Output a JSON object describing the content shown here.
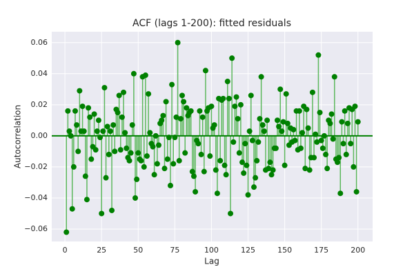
{
  "chart_data": {
    "type": "stem",
    "title": "ACF (lags 1-200): fitted residuals",
    "xlabel": "Lag",
    "ylabel": "Autocorrelation",
    "x": [
      1,
      2,
      3,
      4,
      5,
      6,
      7,
      8,
      9,
      10,
      11,
      12,
      13,
      14,
      15,
      16,
      17,
      18,
      19,
      20,
      21,
      22,
      23,
      24,
      25,
      26,
      27,
      28,
      29,
      30,
      31,
      32,
      33,
      34,
      35,
      36,
      37,
      38,
      39,
      40,
      41,
      42,
      43,
      44,
      45,
      46,
      47,
      48,
      49,
      50,
      51,
      52,
      53,
      54,
      55,
      56,
      57,
      58,
      59,
      60,
      61,
      62,
      63,
      64,
      65,
      66,
      67,
      68,
      69,
      70,
      71,
      72,
      73,
      74,
      75,
      76,
      77,
      78,
      79,
      80,
      81,
      82,
      83,
      84,
      85,
      86,
      87,
      88,
      89,
      90,
      91,
      92,
      93,
      94,
      95,
      96,
      97,
      98,
      99,
      100,
      101,
      102,
      103,
      104,
      105,
      106,
      107,
      108,
      109,
      110,
      111,
      112,
      113,
      114,
      115,
      116,
      117,
      118,
      119,
      120,
      121,
      122,
      123,
      124,
      125,
      126,
      127,
      128,
      129,
      130,
      131,
      132,
      133,
      134,
      135,
      136,
      137,
      138,
      139,
      140,
      141,
      142,
      143,
      144,
      145,
      146,
      147,
      148,
      149,
      150,
      151,
      152,
      153,
      154,
      155,
      156,
      157,
      158,
      159,
      160,
      161,
      162,
      163,
      164,
      165,
      166,
      167,
      168,
      169,
      170,
      171,
      172,
      173,
      174,
      175,
      176,
      177,
      178,
      179,
      180,
      181,
      182,
      183,
      184,
      185,
      186,
      187,
      188,
      189,
      190,
      191,
      192,
      193,
      194,
      195,
      196,
      197,
      198,
      199,
      200
    ],
    "values": [
      -0.062,
      0.016,
      0.003,
      0.0,
      -0.047,
      -0.02,
      0.016,
      0.007,
      -0.01,
      0.029,
      0.003,
      0.019,
      0.003,
      -0.026,
      -0.041,
      0.018,
      0.012,
      -0.015,
      -0.007,
      0.014,
      -0.009,
      0.003,
      0.01,
      -0.001,
      -0.05,
      0.003,
      0.031,
      -0.027,
      0.006,
      -0.012,
      0.003,
      -0.048,
      0.007,
      -0.01,
      0.017,
      0.015,
      0.026,
      -0.009,
      0.012,
      0.028,
      0.002,
      -0.008,
      -0.014,
      -0.016,
      -0.011,
      0.007,
      0.04,
      -0.04,
      -0.028,
      -0.011,
      -0.015,
      -0.016,
      0.038,
      -0.02,
      0.039,
      -0.013,
      0.027,
      0.002,
      -0.005,
      -0.007,
      -0.025,
      0.0,
      -0.018,
      -0.006,
      0.008,
      0.01,
      0.013,
      -0.021,
      0.022,
      -0.015,
      -0.001,
      -0.032,
      0.033,
      -0.018,
      -0.001,
      0.012,
      0.06,
      -0.016,
      0.011,
      0.026,
      0.022,
      -0.011,
      0.018,
      0.013,
      0.015,
      0.016,
      -0.023,
      -0.026,
      -0.036,
      -0.003,
      -0.005,
      0.016,
      -0.012,
      0.012,
      -0.023,
      0.042,
      0.016,
      0.018,
      -0.013,
      0.019,
      0.005,
      0.007,
      -0.022,
      -0.037,
      0.024,
      -0.016,
      0.023,
      0.024,
      -0.019,
      -0.025,
      0.035,
      0.024,
      -0.05,
      0.05,
      -0.004,
      0.019,
      0.025,
      0.011,
      -0.011,
      0.02,
      -0.017,
      -0.024,
      -0.005,
      -0.019,
      -0.038,
      0.003,
      0.026,
      -0.003,
      -0.033,
      -0.027,
      -0.016,
      -0.004,
      0.011,
      0.038,
      0.007,
      0.003,
      -0.022,
      0.01,
      -0.021,
      -0.017,
      -0.025,
      -0.022,
      -0.008,
      -0.008,
      0.01,
      0.006,
      0.03,
      0.003,
      0.009,
      -0.019,
      0.027,
      0.008,
      -0.006,
      0.005,
      -0.004,
      0.004,
      -0.003,
      0.016,
      -0.009,
      0.016,
      -0.008,
      0.002,
      0.019,
      -0.021,
      0.017,
      0.005,
      -0.022,
      -0.014,
      0.028,
      -0.014,
      0.001,
      -0.004,
      0.052,
      0.015,
      -0.003,
      -0.008,
      0.0,
      -0.012,
      -0.021,
      0.01,
      0.008,
      0.014,
      -0.002,
      0.038,
      -0.015,
      -0.017,
      -0.014,
      -0.037,
      0.009,
      -0.005,
      0.016,
      -0.012,
      0.008,
      0.018,
      -0.005,
      0.017,
      -0.02,
      0.019,
      -0.036,
      0.009
    ],
    "color": "#008000",
    "stem_color": "#5cb85c",
    "baseline_color": "#008000",
    "xlim": [
      -9,
      210
    ],
    "ylim": [
      -0.068,
      0.067
    ],
    "xticks": [
      0,
      25,
      50,
      75,
      100,
      125,
      150,
      175,
      200
    ],
    "yticks": [
      {
        "value": -0.06,
        "label": "−0.06"
      },
      {
        "value": -0.04,
        "label": "−0.04"
      },
      {
        "value": -0.02,
        "label": "−0.02"
      },
      {
        "value": 0,
        "label": "0.00"
      },
      {
        "value": 0.02,
        "label": "0.02"
      },
      {
        "value": 0.04,
        "label": "0.04"
      },
      {
        "value": 0.06,
        "label": "0.06"
      }
    ],
    "grid": true
  }
}
